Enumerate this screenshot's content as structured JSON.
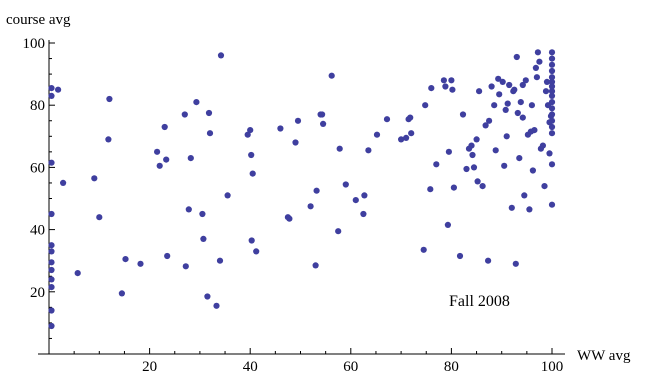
{
  "chart_data": {
    "type": "scatter",
    "title": "",
    "xlabel": "WW avg",
    "ylabel": "course avg",
    "xlim": [
      0,
      100
    ],
    "ylim": [
      0,
      100
    ],
    "xticks": [
      20,
      40,
      60,
      80,
      100
    ],
    "yticks": [
      20,
      40,
      60,
      80,
      100
    ],
    "grid": false,
    "annotation": "Fall 2008",
    "colors": {
      "point": "#3f3f9f",
      "axis": "#000000"
    },
    "series": [
      {
        "points": [
          [
            0.5,
            85.5
          ],
          [
            0.5,
            83
          ],
          [
            0.5,
            61.5
          ],
          [
            0.5,
            45
          ],
          [
            0.5,
            35
          ],
          [
            0.5,
            33
          ],
          [
            0.5,
            29.5
          ],
          [
            0.5,
            27
          ],
          [
            0.5,
            24
          ],
          [
            0.5,
            21.5
          ],
          [
            0.5,
            14
          ],
          [
            0.5,
            9
          ],
          [
            1.8,
            85
          ],
          [
            2.8,
            55
          ],
          [
            5.7,
            26
          ],
          [
            9,
            56.5
          ],
          [
            10,
            44
          ],
          [
            11.8,
            69
          ],
          [
            12,
            82
          ],
          [
            14.5,
            19.5
          ],
          [
            15.2,
            30.5
          ],
          [
            18.2,
            29
          ],
          [
            21.5,
            65
          ],
          [
            22,
            60.5
          ],
          [
            23,
            73
          ],
          [
            23.3,
            62.5
          ],
          [
            23.5,
            31.5
          ],
          [
            27,
            77
          ],
          [
            27.2,
            28.2
          ],
          [
            27.8,
            46.5
          ],
          [
            28.2,
            63
          ],
          [
            29.3,
            81
          ],
          [
            30.5,
            45
          ],
          [
            30.7,
            37
          ],
          [
            31.5,
            18.5
          ],
          [
            31.8,
            77.5
          ],
          [
            32,
            71
          ],
          [
            33.3,
            15.5
          ],
          [
            34,
            30
          ],
          [
            34.2,
            96
          ],
          [
            35.5,
            51
          ],
          [
            39.5,
            70.5
          ],
          [
            40,
            72
          ],
          [
            40.2,
            64
          ],
          [
            40.3,
            36.5
          ],
          [
            40.5,
            58
          ],
          [
            41.2,
            33
          ],
          [
            46,
            72.5
          ],
          [
            47.5,
            44
          ],
          [
            47.8,
            43.5
          ],
          [
            49,
            68
          ],
          [
            49.5,
            75
          ],
          [
            52,
            47.5
          ],
          [
            53,
            28.5
          ],
          [
            53.2,
            52.5
          ],
          [
            54,
            77
          ],
          [
            54.3,
            77
          ],
          [
            54.5,
            74
          ],
          [
            56.2,
            89.5
          ],
          [
            57.5,
            39.5
          ],
          [
            57.8,
            66
          ],
          [
            59,
            54.5
          ],
          [
            61,
            49.5
          ],
          [
            62.5,
            45
          ],
          [
            62.7,
            51
          ],
          [
            63.5,
            65.5
          ],
          [
            65.2,
            70.5
          ],
          [
            67.2,
            75.5
          ],
          [
            70,
            69
          ],
          [
            71,
            69.5
          ],
          [
            71.5,
            75.5
          ],
          [
            71.8,
            76
          ],
          [
            72,
            71
          ],
          [
            74.5,
            33.5
          ],
          [
            74.8,
            80
          ],
          [
            75.8,
            53
          ],
          [
            76,
            85.5
          ],
          [
            77,
            61
          ],
          [
            78.5,
            88
          ],
          [
            78.8,
            86
          ],
          [
            79.3,
            41.5
          ],
          [
            79.5,
            65
          ],
          [
            80,
            88
          ],
          [
            80.2,
            85
          ],
          [
            80.5,
            53.5
          ],
          [
            81.7,
            31.5
          ],
          [
            82.3,
            77
          ],
          [
            83,
            59.5
          ],
          [
            83.5,
            66
          ],
          [
            84,
            67
          ],
          [
            84.2,
            64
          ],
          [
            84.5,
            60
          ],
          [
            85,
            69
          ],
          [
            85.2,
            55.5
          ],
          [
            85.5,
            84.5
          ],
          [
            86.2,
            54
          ],
          [
            86.8,
            73.5
          ],
          [
            87.3,
            30
          ],
          [
            87.5,
            75
          ],
          [
            88,
            86
          ],
          [
            88.5,
            80
          ],
          [
            88.8,
            65.5
          ],
          [
            89.3,
            88.5
          ],
          [
            89.5,
            83.5
          ],
          [
            90.2,
            87.5
          ],
          [
            90.5,
            60.5
          ],
          [
            90.8,
            78.5
          ],
          [
            91,
            70
          ],
          [
            91.2,
            80.5
          ],
          [
            91.5,
            86.5
          ],
          [
            92,
            47
          ],
          [
            92.3,
            84.5
          ],
          [
            92.5,
            85
          ],
          [
            92.8,
            29
          ],
          [
            93,
            95.5
          ],
          [
            93.2,
            77.5
          ],
          [
            93.5,
            63
          ],
          [
            93.8,
            81
          ],
          [
            94.2,
            76
          ],
          [
            94.2,
            86.5
          ],
          [
            94.5,
            51
          ],
          [
            94.8,
            88
          ],
          [
            95.2,
            70.5
          ],
          [
            95.5,
            46.5
          ],
          [
            95.8,
            71.5
          ],
          [
            96,
            80
          ],
          [
            96.2,
            59
          ],
          [
            96.5,
            72
          ],
          [
            96.8,
            92
          ],
          [
            97,
            89
          ],
          [
            97.2,
            97
          ],
          [
            97.5,
            94
          ],
          [
            97.8,
            66
          ],
          [
            98.2,
            67
          ],
          [
            98.5,
            54
          ],
          [
            98.8,
            84.5
          ],
          [
            99,
            87.5
          ],
          [
            99.2,
            80
          ],
          [
            99.5,
            64.5
          ],
          [
            99.5,
            74.5
          ],
          [
            99.8,
            76.5
          ],
          [
            100,
            97
          ],
          [
            100,
            95
          ],
          [
            100,
            93
          ],
          [
            100,
            91
          ],
          [
            100,
            89
          ],
          [
            100,
            87.5
          ],
          [
            100,
            86
          ],
          [
            100,
            84.5
          ],
          [
            100,
            83
          ],
          [
            100,
            81
          ],
          [
            100,
            79
          ],
          [
            100,
            77
          ],
          [
            100,
            75
          ],
          [
            100,
            73
          ],
          [
            100,
            71
          ],
          [
            100,
            61
          ],
          [
            100,
            48
          ]
        ]
      }
    ]
  }
}
